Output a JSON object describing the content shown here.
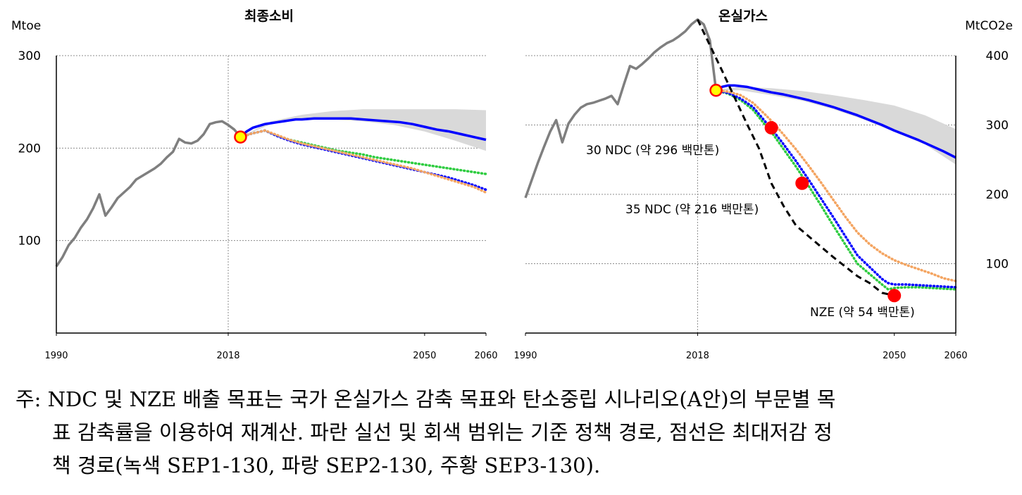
{
  "chart_data": [
    {
      "type": "line",
      "title": "최종소비",
      "ylabel": "Mtoe",
      "ylim": [
        0,
        300
      ],
      "yticks": [
        100,
        200,
        300
      ],
      "xlim": [
        1990,
        2060
      ],
      "xticks": [
        1990,
        2018,
        2050,
        2060
      ],
      "grid": "horizontal dotted",
      "vline_x": 2018,
      "band": {
        "name": "기준 정책 범위",
        "color": "#d9d9d9",
        "x": [
          2020,
          2025,
          2030,
          2035,
          2040,
          2045,
          2050,
          2055,
          2060
        ],
        "low": [
          212,
          226,
          231,
          231,
          229,
          225,
          218,
          208,
          197
        ],
        "high": [
          212,
          229,
          236,
          240,
          242,
          242,
          242,
          242,
          241
        ]
      },
      "series": [
        {
          "color": "#7f7f7f",
          "style": "solid",
          "x": [
            1990,
            1991,
            1992,
            1993,
            1994,
            1995,
            1996,
            1997,
            1998,
            1999,
            2000,
            2001,
            2002,
            2003,
            2004,
            2005,
            2006,
            2007,
            2008,
            2009,
            2010,
            2011,
            2012,
            2013,
            2014,
            2015,
            2016,
            2017,
            2018,
            2019,
            2020
          ],
          "y": [
            72,
            82,
            95,
            103,
            114,
            123,
            135,
            150,
            127,
            136,
            146,
            152,
            158,
            166,
            170,
            174,
            178,
            183,
            190,
            196,
            210,
            206,
            205,
            208,
            215,
            226,
            228,
            229,
            225,
            220,
            212
          ]
        },
        {
          "color": "#0000ff",
          "style": "solid",
          "x": [
            2020,
            2021,
            2022,
            2023,
            2024,
            2025,
            2026,
            2027,
            2028,
            2029,
            2030,
            2032,
            2034,
            2036,
            2038,
            2040,
            2042,
            2044,
            2046,
            2048,
            2050,
            2052,
            2054,
            2056,
            2058,
            2060
          ],
          "y": [
            212,
            218,
            222,
            224,
            226,
            227,
            228,
            229,
            230,
            231,
            231,
            232,
            232,
            232,
            232,
            231,
            230,
            229,
            228,
            226,
            223,
            220,
            218,
            215,
            212,
            209
          ]
        },
        {
          "color": "#2ecc40",
          "style": "dotted",
          "x": [
            2020,
            2022,
            2024,
            2026,
            2028,
            2030,
            2032,
            2034,
            2036,
            2038,
            2040,
            2042,
            2044,
            2046,
            2048,
            2050,
            2052,
            2054,
            2056,
            2058,
            2060
          ],
          "y": [
            212,
            216,
            219,
            213,
            209,
            206,
            203,
            200,
            197,
            195,
            193,
            190,
            188,
            186,
            184,
            182,
            180,
            178,
            176,
            174,
            172
          ]
        },
        {
          "color": "#0000ff",
          "style": "dotted",
          "x": [
            2020,
            2022,
            2024,
            2026,
            2028,
            2030,
            2032,
            2034,
            2036,
            2038,
            2040,
            2042,
            2044,
            2046,
            2048,
            2050,
            2052,
            2054,
            2056,
            2058,
            2060
          ],
          "y": [
            212,
            216,
            219,
            213,
            208,
            204,
            201,
            198,
            195,
            192,
            189,
            186,
            183,
            180,
            177,
            174,
            171,
            168,
            164,
            160,
            155
          ]
        },
        {
          "color": "#f4a460",
          "style": "dotted",
          "x": [
            2020,
            2022,
            2024,
            2026,
            2028,
            2030,
            2032,
            2034,
            2036,
            2038,
            2040,
            2042,
            2044,
            2046,
            2048,
            2050,
            2052,
            2054,
            2056,
            2058,
            2060
          ],
          "y": [
            212,
            216,
            219,
            214,
            209,
            205,
            202,
            199,
            196,
            193,
            190,
            187,
            184,
            181,
            178,
            174,
            170,
            166,
            162,
            158,
            152
          ]
        }
      ],
      "markers": [
        {
          "x": 2020,
          "y": 212,
          "color": "#ffff00",
          "edge": "#ff0000"
        }
      ]
    },
    {
      "type": "line",
      "title": "온실가스",
      "ylabel": "MtCO2e",
      "ylim": [
        0,
        400
      ],
      "yticks": [
        100,
        200,
        300,
        400
      ],
      "xlim": [
        1990,
        2060
      ],
      "xticks": [
        1990,
        2018,
        2050,
        2060
      ],
      "grid": "horizontal dotted",
      "vline_x": 2018,
      "band": {
        "name": "기준 정책 범위",
        "color": "#d9d9d9",
        "x": [
          2020,
          2025,
          2030,
          2035,
          2040,
          2045,
          2050,
          2055,
          2060
        ],
        "low": [
          350,
          350,
          343,
          335,
          323,
          308,
          290,
          272,
          243
        ],
        "high": [
          350,
          355,
          353,
          349,
          343,
          336,
          328,
          314,
          294
        ]
      },
      "series": [
        {
          "color": "#7f7f7f",
          "style": "solid",
          "x": [
            1990,
            1991,
            1992,
            1993,
            1994,
            1995,
            1996,
            1997,
            1998,
            1999,
            2000,
            2001,
            2002,
            2003,
            2004,
            2005,
            2006,
            2007,
            2008,
            2009,
            2010,
            2011,
            2012,
            2013,
            2014,
            2015,
            2016,
            2017,
            2018,
            2019,
            2020,
            2021
          ],
          "y": [
            195,
            220,
            245,
            268,
            290,
            307,
            275,
            302,
            315,
            325,
            330,
            332,
            335,
            338,
            342,
            330,
            358,
            385,
            381,
            388,
            396,
            405,
            412,
            418,
            422,
            428,
            435,
            445,
            452,
            445,
            422,
            350
          ]
        },
        {
          "color": "#0000ff",
          "style": "solid",
          "x": [
            2021,
            2022,
            2023,
            2024,
            2025,
            2026,
            2027,
            2028,
            2029,
            2030,
            2032,
            2034,
            2036,
            2038,
            2040,
            2042,
            2044,
            2046,
            2048,
            2050,
            2052,
            2054,
            2056,
            2058,
            2060
          ],
          "y": [
            350,
            355,
            357,
            357,
            356,
            355,
            353,
            351,
            349,
            347,
            344,
            340,
            336,
            331,
            326,
            320,
            314,
            307,
            300,
            292,
            285,
            278,
            270,
            262,
            253
          ]
        },
        {
          "color": "#2ecc40",
          "style": "dotted",
          "x": [
            2021,
            2023,
            2025,
            2027,
            2029,
            2030,
            2032,
            2034,
            2036,
            2038,
            2040,
            2042,
            2044,
            2046,
            2048,
            2049,
            2050,
            2052,
            2054,
            2056,
            2058,
            2060
          ],
          "y": [
            350,
            345,
            336,
            322,
            300,
            290,
            265,
            240,
            213,
            185,
            156,
            128,
            100,
            85,
            70,
            63,
            65,
            66,
            66,
            65,
            64,
            63
          ]
        },
        {
          "color": "#0000ff",
          "style": "dotted",
          "x": [
            2021,
            2023,
            2025,
            2027,
            2029,
            2030,
            2032,
            2034,
            2036,
            2038,
            2040,
            2042,
            2044,
            2046,
            2048,
            2049,
            2050,
            2052,
            2054,
            2056,
            2058,
            2060
          ],
          "y": [
            350,
            346,
            338,
            326,
            305,
            295,
            272,
            248,
            222,
            195,
            168,
            140,
            112,
            95,
            78,
            72,
            70,
            70,
            69,
            68,
            67,
            66
          ]
        },
        {
          "color": "#f4a460",
          "style": "dotted",
          "x": [
            2021,
            2023,
            2025,
            2027,
            2029,
            2030,
            2032,
            2034,
            2036,
            2038,
            2040,
            2042,
            2044,
            2046,
            2048,
            2050,
            2052,
            2054,
            2056,
            2058,
            2060
          ],
          "y": [
            350,
            348,
            343,
            332,
            315,
            306,
            286,
            265,
            242,
            218,
            193,
            168,
            145,
            128,
            115,
            105,
            98,
            92,
            86,
            79,
            75
          ]
        },
        {
          "color": "#000000",
          "style": "dashed",
          "x": [
            2018,
            2020,
            2022,
            2024,
            2026,
            2028,
            2030,
            2032,
            2034,
            2036,
            2038,
            2040,
            2042,
            2044,
            2046,
            2048,
            2050
          ],
          "y": [
            452,
            415,
            378,
            340,
            302,
            266,
            216,
            183,
            155,
            140,
            125,
            110,
            96,
            82,
            72,
            58,
            54
          ]
        }
      ],
      "markers": [
        {
          "x": 2021,
          "y": 350,
          "color": "#ffff00",
          "edge": "#ff0000"
        },
        {
          "x": 2030,
          "y": 296,
          "color": "#ff0000",
          "edge": "#ff0000"
        },
        {
          "x": 2035,
          "y": 216,
          "color": "#ff0000",
          "edge": "#ff0000"
        },
        {
          "x": 2050,
          "y": 54,
          "color": "#ff0000",
          "edge": "#ff0000"
        }
      ],
      "annotations": [
        "30 NDC (약 296 백만톤)",
        "35 NDC (약 216 백만톤)",
        "NZE (약 54 백만톤)"
      ]
    }
  ],
  "note": {
    "lines": [
      "주: NDC 및 NZE 배출 목표는 국가 온실가스 감축 목표와 탄소중립 시나리오(A안)의 부문별 목",
      "표 감축률을 이용하여 재계산. 파란 실선 및 회색 범위는 기준 정책 경로, 점선은 최대저감 정",
      "책 경로(녹색 SEP1-130, 파랑 SEP2-130, 주황 SEP3-130)."
    ]
  }
}
